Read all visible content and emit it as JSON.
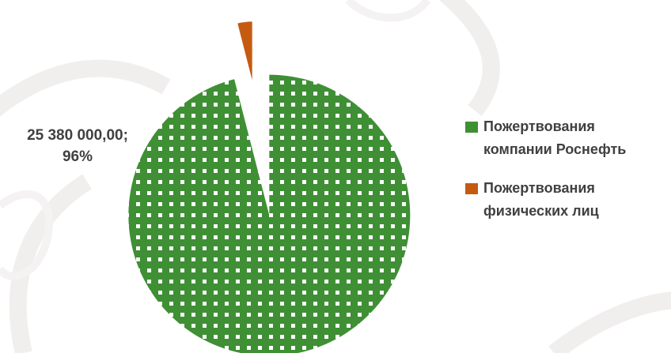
{
  "chart_data": {
    "type": "pie",
    "slices": [
      {
        "name": "Пожертвования компании Роснефть",
        "legend_lines": [
          "Пожертвования",
          "компании Роснефть"
        ],
        "value": 25380000,
        "percent": 96,
        "label_lines": [
          "25 380 000,00;",
          "96%"
        ],
        "color": "#3f8f35",
        "pattern": "dots"
      },
      {
        "name": "Пожертвования физических лиц",
        "legend_lines": [
          "Пожертвования",
          "физических лиц"
        ],
        "percent": 4,
        "color": "#c55a11"
      }
    ],
    "legend_position": "right",
    "exploded": true
  }
}
